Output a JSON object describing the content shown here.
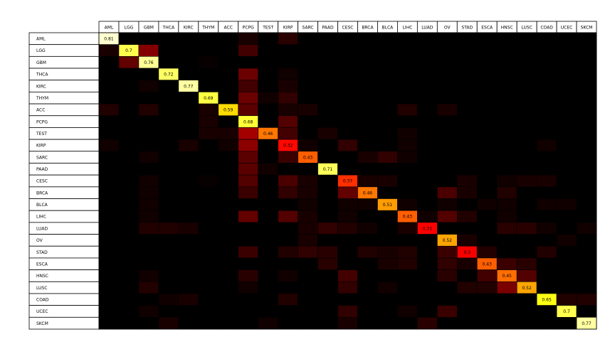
{
  "chart_data": {
    "type": "heatmap",
    "title": "",
    "xlabel": "",
    "ylabel": "",
    "colormap": "hot",
    "grid": true,
    "color_range": [
      0,
      0.85
    ],
    "col_labels": [
      "AML",
      "LGG",
      "GBM",
      "THCA",
      "KIRC",
      "THYM",
      "ACC",
      "PCPG",
      "TEST",
      "KIRP",
      "SARC",
      "PAAD",
      "CESC",
      "BRCA",
      "BLCA",
      "LIHC",
      "LUAD",
      "OV",
      "STAD",
      "ESCA",
      "HNSC",
      "LUSC",
      "COAD",
      "UCEC",
      "SKCM"
    ],
    "row_labels": [
      "AML",
      "LGG",
      "GBM",
      "THCA",
      "KIRC",
      "THYM",
      "ACC",
      "PCPG",
      "TEST",
      "KIRP",
      "SARC",
      "PAAD",
      "CESC",
      "BRCA",
      "BLCA",
      "LIHC",
      "LUAD",
      "OV",
      "STAD",
      "ESCA",
      "HNSC",
      "LUSC",
      "COAD",
      "UCEC",
      "SKCM"
    ],
    "values": [
      [
        0.81,
        0,
        0,
        0,
        0,
        0,
        0,
        0.03,
        0,
        0.05,
        0,
        0,
        0,
        0,
        0,
        0,
        0,
        0,
        0,
        0,
        0,
        0,
        0,
        0,
        0
      ],
      [
        0.03,
        0.7,
        0.16,
        0,
        0,
        0,
        0,
        0.08,
        0,
        0,
        0,
        0,
        0,
        0,
        0,
        0,
        0,
        0,
        0,
        0,
        0,
        0,
        0,
        0,
        0
      ],
      [
        0,
        0.12,
        0.76,
        0,
        0,
        0.01,
        0,
        0,
        0,
        0,
        0,
        0,
        0,
        0,
        0,
        0,
        0,
        0,
        0,
        0,
        0,
        0,
        0,
        0,
        0
      ],
      [
        0,
        0,
        0,
        0.72,
        0,
        0,
        0,
        0.13,
        0,
        0.02,
        0,
        0,
        0,
        0,
        0,
        0,
        0,
        0,
        0,
        0,
        0,
        0,
        0,
        0,
        0
      ],
      [
        0,
        0,
        0.02,
        0,
        0.77,
        0,
        0,
        0.08,
        0,
        0.03,
        0,
        0,
        0,
        0,
        0,
        0,
        0,
        0,
        0,
        0,
        0,
        0,
        0,
        0,
        0
      ],
      [
        0,
        0,
        0,
        0,
        0,
        0.69,
        0,
        0.13,
        0.02,
        0.06,
        0,
        0,
        0,
        0,
        0,
        0,
        0,
        0,
        0,
        0,
        0,
        0,
        0,
        0,
        0
      ],
      [
        0.04,
        0,
        0.04,
        0,
        0,
        0.03,
        0.59,
        0.11,
        0,
        0.03,
        0.03,
        0,
        0,
        0,
        0,
        0.04,
        0,
        0.03,
        0,
        0,
        0,
        0,
        0,
        0,
        0
      ],
      [
        0,
        0,
        0,
        0,
        0,
        0.03,
        0,
        0.68,
        0,
        0.1,
        0,
        0,
        0,
        0,
        0,
        0,
        0,
        0,
        0,
        0,
        0,
        0,
        0,
        0,
        0
      ],
      [
        0,
        0,
        0,
        0,
        0,
        0.03,
        0.03,
        0.2,
        0.46,
        0.08,
        0,
        0.03,
        0,
        0,
        0,
        0.02,
        0,
        0,
        0,
        0,
        0,
        0,
        0,
        0,
        0
      ],
      [
        0.02,
        0,
        0,
        0,
        0.03,
        0,
        0.02,
        0.17,
        0,
        0.32,
        0.02,
        0,
        0.06,
        0,
        0,
        0.02,
        0,
        0,
        0,
        0,
        0,
        0,
        0.02,
        0,
        0
      ],
      [
        0,
        0,
        0.02,
        0,
        0,
        0,
        0,
        0.11,
        0,
        0.07,
        0.43,
        0,
        0,
        0.03,
        0.06,
        0.02,
        0,
        0,
        0,
        0,
        0,
        0,
        0,
        0,
        0
      ],
      [
        0,
        0,
        0,
        0,
        0,
        0,
        0,
        0.11,
        0.02,
        0,
        0,
        0.71,
        0,
        0,
        0,
        0,
        0,
        0,
        0,
        0,
        0,
        0,
        0,
        0,
        0
      ],
      [
        0,
        0,
        0.02,
        0,
        0,
        0.01,
        0,
        0.1,
        0,
        0.09,
        0.03,
        0,
        0.37,
        0.03,
        0.03,
        0,
        0,
        0,
        0.03,
        0,
        0.02,
        0.03,
        0.03,
        0,
        0
      ],
      [
        0,
        0,
        0.02,
        0,
        0,
        0,
        0,
        0.07,
        0,
        0.06,
        0.03,
        0,
        0.12,
        0.46,
        0,
        0,
        0,
        0.09,
        0.03,
        0,
        0.04,
        0,
        0,
        0,
        0
      ],
      [
        0,
        0,
        0.02,
        0,
        0,
        0,
        0,
        0,
        0,
        0,
        0.02,
        0,
        0.02,
        0.02,
        0.51,
        0.02,
        0,
        0.02,
        0,
        0.02,
        0.02,
        0,
        0.02,
        0.02,
        0
      ],
      [
        0,
        0,
        0.02,
        0,
        0,
        0,
        0,
        0.12,
        0,
        0.1,
        0.03,
        0,
        0.02,
        0,
        0,
        0.43,
        0.02,
        0.1,
        0.04,
        0,
        0.02,
        0,
        0,
        0,
        0
      ],
      [
        0,
        0,
        0.04,
        0.04,
        0.03,
        0,
        0,
        0,
        0,
        0,
        0.03,
        0.06,
        0.04,
        0.02,
        0,
        0.03,
        0.31,
        0,
        0,
        0,
        0.05,
        0.05,
        0.02,
        0,
        0.02
      ],
      [
        0,
        0,
        0,
        0,
        0,
        0,
        0,
        0,
        0,
        0,
        0.03,
        0,
        0,
        0,
        0,
        0,
        0,
        0.52,
        0.03,
        0,
        0,
        0,
        0,
        0.02,
        0
      ],
      [
        0,
        0,
        0,
        0,
        0,
        0,
        0,
        0.07,
        0,
        0.04,
        0.06,
        0.05,
        0,
        0.04,
        0.03,
        0.04,
        0,
        0.07,
        0.3,
        0.04,
        0,
        0,
        0.04,
        0,
        0
      ],
      [
        0,
        0,
        0,
        0,
        0,
        0,
        0,
        0,
        0,
        0,
        0,
        0.05,
        0,
        0,
        0.03,
        0.04,
        0,
        0.06,
        0.03,
        0.43,
        0.07,
        0.05,
        0,
        0,
        0
      ],
      [
        0,
        0,
        0.02,
        0,
        0,
        0,
        0,
        0.05,
        0,
        0.02,
        0,
        0,
        0.08,
        0,
        0,
        0,
        0,
        0.05,
        0,
        0.08,
        0.45,
        0.1,
        0,
        0,
        0
      ],
      [
        0,
        0,
        0.04,
        0,
        0,
        0,
        0,
        0.02,
        0,
        0,
        0,
        0,
        0.06,
        0,
        0.02,
        0,
        0,
        0,
        0.04,
        0.04,
        0.15,
        0.52,
        0,
        0,
        0
      ],
      [
        0,
        0,
        0,
        0.02,
        0.03,
        0,
        0,
        0,
        0,
        0.04,
        0,
        0,
        0,
        0,
        0,
        0,
        0,
        0,
        0,
        0,
        0,
        0,
        0.65,
        0.04,
        0.04
      ],
      [
        0,
        0,
        0.02,
        0,
        0,
        0,
        0,
        0,
        0,
        0,
        0,
        0,
        0.06,
        0,
        0,
        0.02,
        0,
        0.07,
        0,
        0,
        0,
        0,
        0,
        0.7,
        0
      ],
      [
        0,
        0,
        0,
        0.03,
        0,
        0,
        0,
        0,
        0.02,
        0,
        0,
        0,
        0.03,
        0,
        0,
        0,
        0.05,
        0,
        0,
        0,
        0,
        0,
        0,
        0,
        0.77
      ]
    ],
    "shown_labels": [
      [
        "0.81",
        null,
        null,
        null,
        null,
        null,
        null,
        null,
        null,
        null,
        null,
        null,
        null,
        null,
        null,
        null,
        null,
        null,
        null,
        null,
        null,
        null,
        null,
        null,
        null
      ],
      [
        null,
        "0.7",
        null,
        null,
        null,
        null,
        null,
        null,
        null,
        null,
        null,
        null,
        null,
        null,
        null,
        null,
        null,
        null,
        null,
        null,
        null,
        null,
        null,
        null,
        null
      ],
      [
        null,
        null,
        "0.76",
        null,
        null,
        null,
        null,
        null,
        null,
        null,
        null,
        null,
        null,
        null,
        null,
        null,
        null,
        null,
        null,
        null,
        null,
        null,
        null,
        null,
        null
      ],
      [
        null,
        null,
        null,
        "0.72",
        null,
        null,
        null,
        null,
        null,
        null,
        null,
        null,
        null,
        null,
        null,
        null,
        null,
        null,
        null,
        null,
        null,
        null,
        null,
        null,
        null
      ],
      [
        null,
        null,
        null,
        null,
        "0.77",
        null,
        null,
        null,
        null,
        null,
        null,
        null,
        null,
        null,
        null,
        null,
        null,
        null,
        null,
        null,
        null,
        null,
        null,
        null,
        null
      ],
      [
        null,
        null,
        null,
        null,
        null,
        "0.69",
        null,
        null,
        null,
        null,
        null,
        null,
        null,
        null,
        null,
        null,
        null,
        null,
        null,
        null,
        null,
        null,
        null,
        null,
        null
      ],
      [
        null,
        null,
        null,
        null,
        null,
        null,
        "0.59",
        null,
        null,
        null,
        null,
        null,
        null,
        null,
        null,
        null,
        null,
        null,
        null,
        null,
        null,
        null,
        null,
        null,
        null
      ],
      [
        null,
        null,
        null,
        null,
        null,
        null,
        null,
        "0.68",
        null,
        null,
        null,
        null,
        null,
        null,
        null,
        null,
        null,
        null,
        null,
        null,
        null,
        null,
        null,
        null,
        null
      ],
      [
        null,
        null,
        null,
        null,
        null,
        null,
        null,
        null,
        "0.46",
        null,
        null,
        null,
        null,
        null,
        null,
        null,
        null,
        null,
        null,
        null,
        null,
        null,
        null,
        null,
        null
      ],
      [
        null,
        null,
        null,
        null,
        null,
        null,
        null,
        null,
        null,
        "0.32",
        null,
        null,
        null,
        null,
        null,
        null,
        null,
        null,
        null,
        null,
        null,
        null,
        null,
        null,
        null
      ],
      [
        null,
        null,
        null,
        null,
        null,
        null,
        null,
        null,
        null,
        null,
        "0.43",
        null,
        null,
        null,
        null,
        null,
        null,
        null,
        null,
        null,
        null,
        null,
        null,
        null,
        null
      ],
      [
        null,
        null,
        null,
        null,
        null,
        null,
        null,
        null,
        null,
        null,
        null,
        "0.71",
        null,
        null,
        null,
        null,
        null,
        null,
        null,
        null,
        null,
        null,
        null,
        null,
        null
      ],
      [
        null,
        null,
        null,
        null,
        null,
        null,
        null,
        null,
        null,
        null,
        null,
        null,
        "0.37",
        null,
        null,
        null,
        null,
        null,
        null,
        null,
        null,
        null,
        null,
        null,
        null
      ],
      [
        null,
        null,
        null,
        null,
        null,
        null,
        null,
        null,
        null,
        null,
        null,
        null,
        null,
        "0.46",
        null,
        null,
        null,
        null,
        null,
        null,
        null,
        null,
        null,
        null,
        null
      ],
      [
        null,
        null,
        null,
        null,
        null,
        null,
        null,
        null,
        null,
        null,
        null,
        null,
        null,
        null,
        "0.51",
        null,
        null,
        null,
        null,
        null,
        null,
        null,
        null,
        null,
        null
      ],
      [
        null,
        null,
        null,
        null,
        null,
        null,
        null,
        null,
        null,
        null,
        null,
        null,
        null,
        null,
        null,
        "0.43",
        null,
        null,
        null,
        null,
        null,
        null,
        null,
        null,
        null
      ],
      [
        null,
        null,
        null,
        null,
        null,
        null,
        null,
        null,
        null,
        null,
        null,
        null,
        null,
        null,
        null,
        null,
        "0.31",
        null,
        null,
        null,
        null,
        null,
        null,
        null,
        null
      ],
      [
        null,
        null,
        null,
        null,
        null,
        null,
        null,
        null,
        null,
        null,
        null,
        null,
        null,
        null,
        null,
        null,
        null,
        "0.52",
        null,
        null,
        null,
        null,
        null,
        null,
        null
      ],
      [
        null,
        null,
        null,
        null,
        null,
        null,
        null,
        null,
        null,
        null,
        null,
        null,
        null,
        null,
        null,
        null,
        null,
        null,
        "0.3",
        null,
        null,
        null,
        null,
        null,
        null
      ],
      [
        null,
        null,
        null,
        null,
        null,
        null,
        null,
        null,
        null,
        null,
        null,
        null,
        null,
        null,
        null,
        null,
        null,
        null,
        null,
        "0.43",
        null,
        null,
        null,
        null,
        null
      ],
      [
        null,
        null,
        null,
        null,
        null,
        null,
        null,
        null,
        null,
        null,
        null,
        null,
        null,
        null,
        null,
        null,
        null,
        null,
        null,
        null,
        "0.45",
        null,
        null,
        null,
        null
      ],
      [
        null,
        null,
        null,
        null,
        null,
        null,
        null,
        null,
        null,
        null,
        null,
        null,
        null,
        null,
        null,
        null,
        null,
        null,
        null,
        null,
        null,
        "0.52",
        null,
        null,
        null
      ],
      [
        null,
        null,
        null,
        null,
        null,
        null,
        null,
        null,
        null,
        null,
        null,
        null,
        null,
        null,
        null,
        null,
        null,
        null,
        null,
        null,
        null,
        null,
        "0.65",
        null,
        null
      ],
      [
        null,
        null,
        null,
        null,
        null,
        null,
        null,
        null,
        null,
        null,
        null,
        null,
        null,
        null,
        null,
        null,
        null,
        null,
        null,
        null,
        null,
        null,
        null,
        "0.7",
        null
      ],
      [
        null,
        null,
        null,
        null,
        null,
        null,
        null,
        null,
        null,
        null,
        null,
        null,
        null,
        null,
        null,
        null,
        null,
        null,
        null,
        null,
        null,
        null,
        null,
        null,
        "0.77"
      ]
    ]
  }
}
